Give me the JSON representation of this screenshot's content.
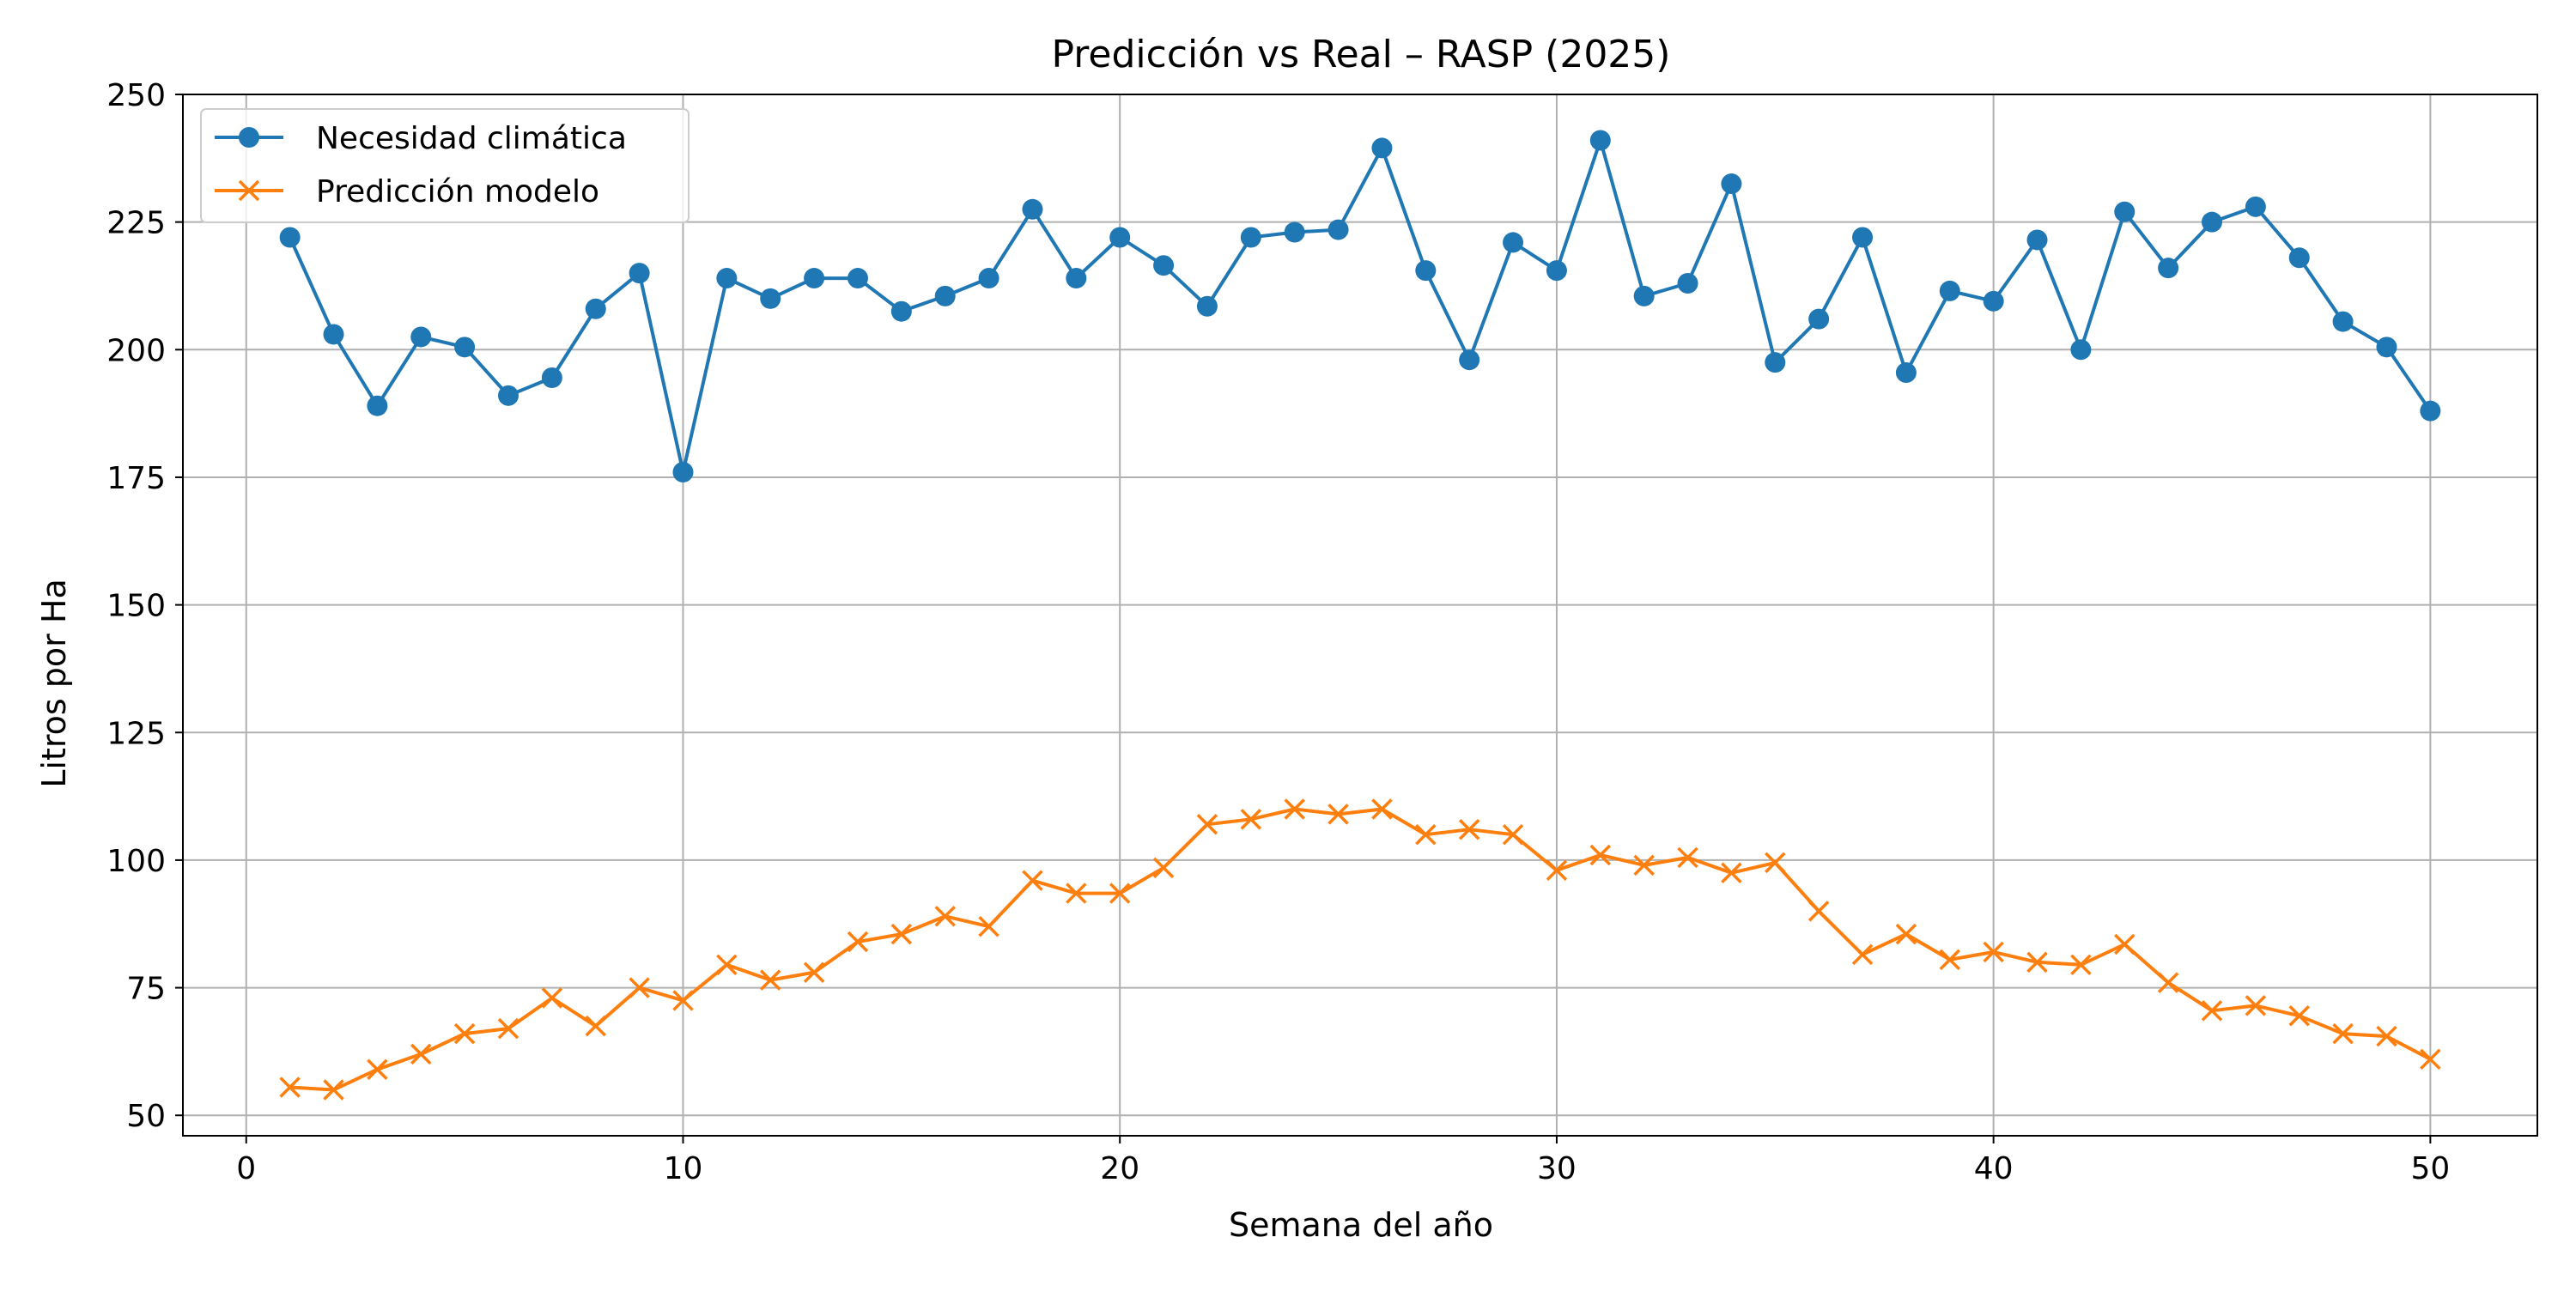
{
  "chart_data": {
    "type": "line",
    "title": "Predicción vs Real – RASP (2025)",
    "xlabel": "Semana del año",
    "ylabel": "Litros por Ha",
    "xlim": [
      -1.45,
      52.45
    ],
    "ylim": [
      46,
      250
    ],
    "xticks": [
      0,
      10,
      20,
      30,
      40,
      50
    ],
    "yticks": [
      50,
      75,
      100,
      125,
      150,
      175,
      200,
      225,
      250
    ],
    "grid": true,
    "legend_position": "upper-left",
    "x": [
      1,
      2,
      3,
      4,
      5,
      6,
      7,
      8,
      9,
      10,
      11,
      12,
      13,
      14,
      15,
      16,
      17,
      18,
      19,
      20,
      21,
      22,
      23,
      24,
      25,
      26,
      27,
      28,
      29,
      30,
      31,
      32,
      33,
      34,
      35,
      36,
      37,
      38,
      39,
      40,
      41,
      42,
      43,
      44,
      45,
      46,
      47,
      48,
      49,
      50
    ],
    "series": [
      {
        "name": "Necesidad climática",
        "color": "#1f77b4",
        "marker": "circle",
        "values": [
          222,
          203,
          189,
          202.5,
          200.5,
          191,
          194.5,
          208,
          215,
          176,
          214,
          210,
          214,
          214,
          207.5,
          210.5,
          214,
          227.5,
          214,
          222,
          216.5,
          208.5,
          222,
          223,
          223.5,
          239.5,
          215.5,
          198,
          221,
          215.5,
          241,
          210.5,
          213,
          232.5,
          197.5,
          206,
          222,
          195.5,
          211.5,
          209.5,
          221.5,
          200,
          227,
          216,
          225,
          228,
          218,
          205.5,
          200.5,
          188
        ]
      },
      {
        "name": "Predicción modelo",
        "color": "#ff7f0e",
        "marker": "x",
        "values": [
          55.5,
          55,
          59,
          62,
          66,
          67,
          73,
          67.5,
          75,
          72.5,
          79.5,
          76.5,
          78,
          84,
          85.5,
          89,
          87,
          96,
          93.5,
          93.5,
          98.5,
          107,
          108,
          110,
          109,
          110,
          105,
          106,
          105,
          98,
          101,
          99,
          100.5,
          97.5,
          99.5,
          90,
          81.5,
          85.5,
          80.5,
          82,
          80,
          79.5,
          83.5,
          76,
          70.5,
          71.5,
          69.5,
          66,
          65.5,
          61
        ]
      }
    ]
  }
}
